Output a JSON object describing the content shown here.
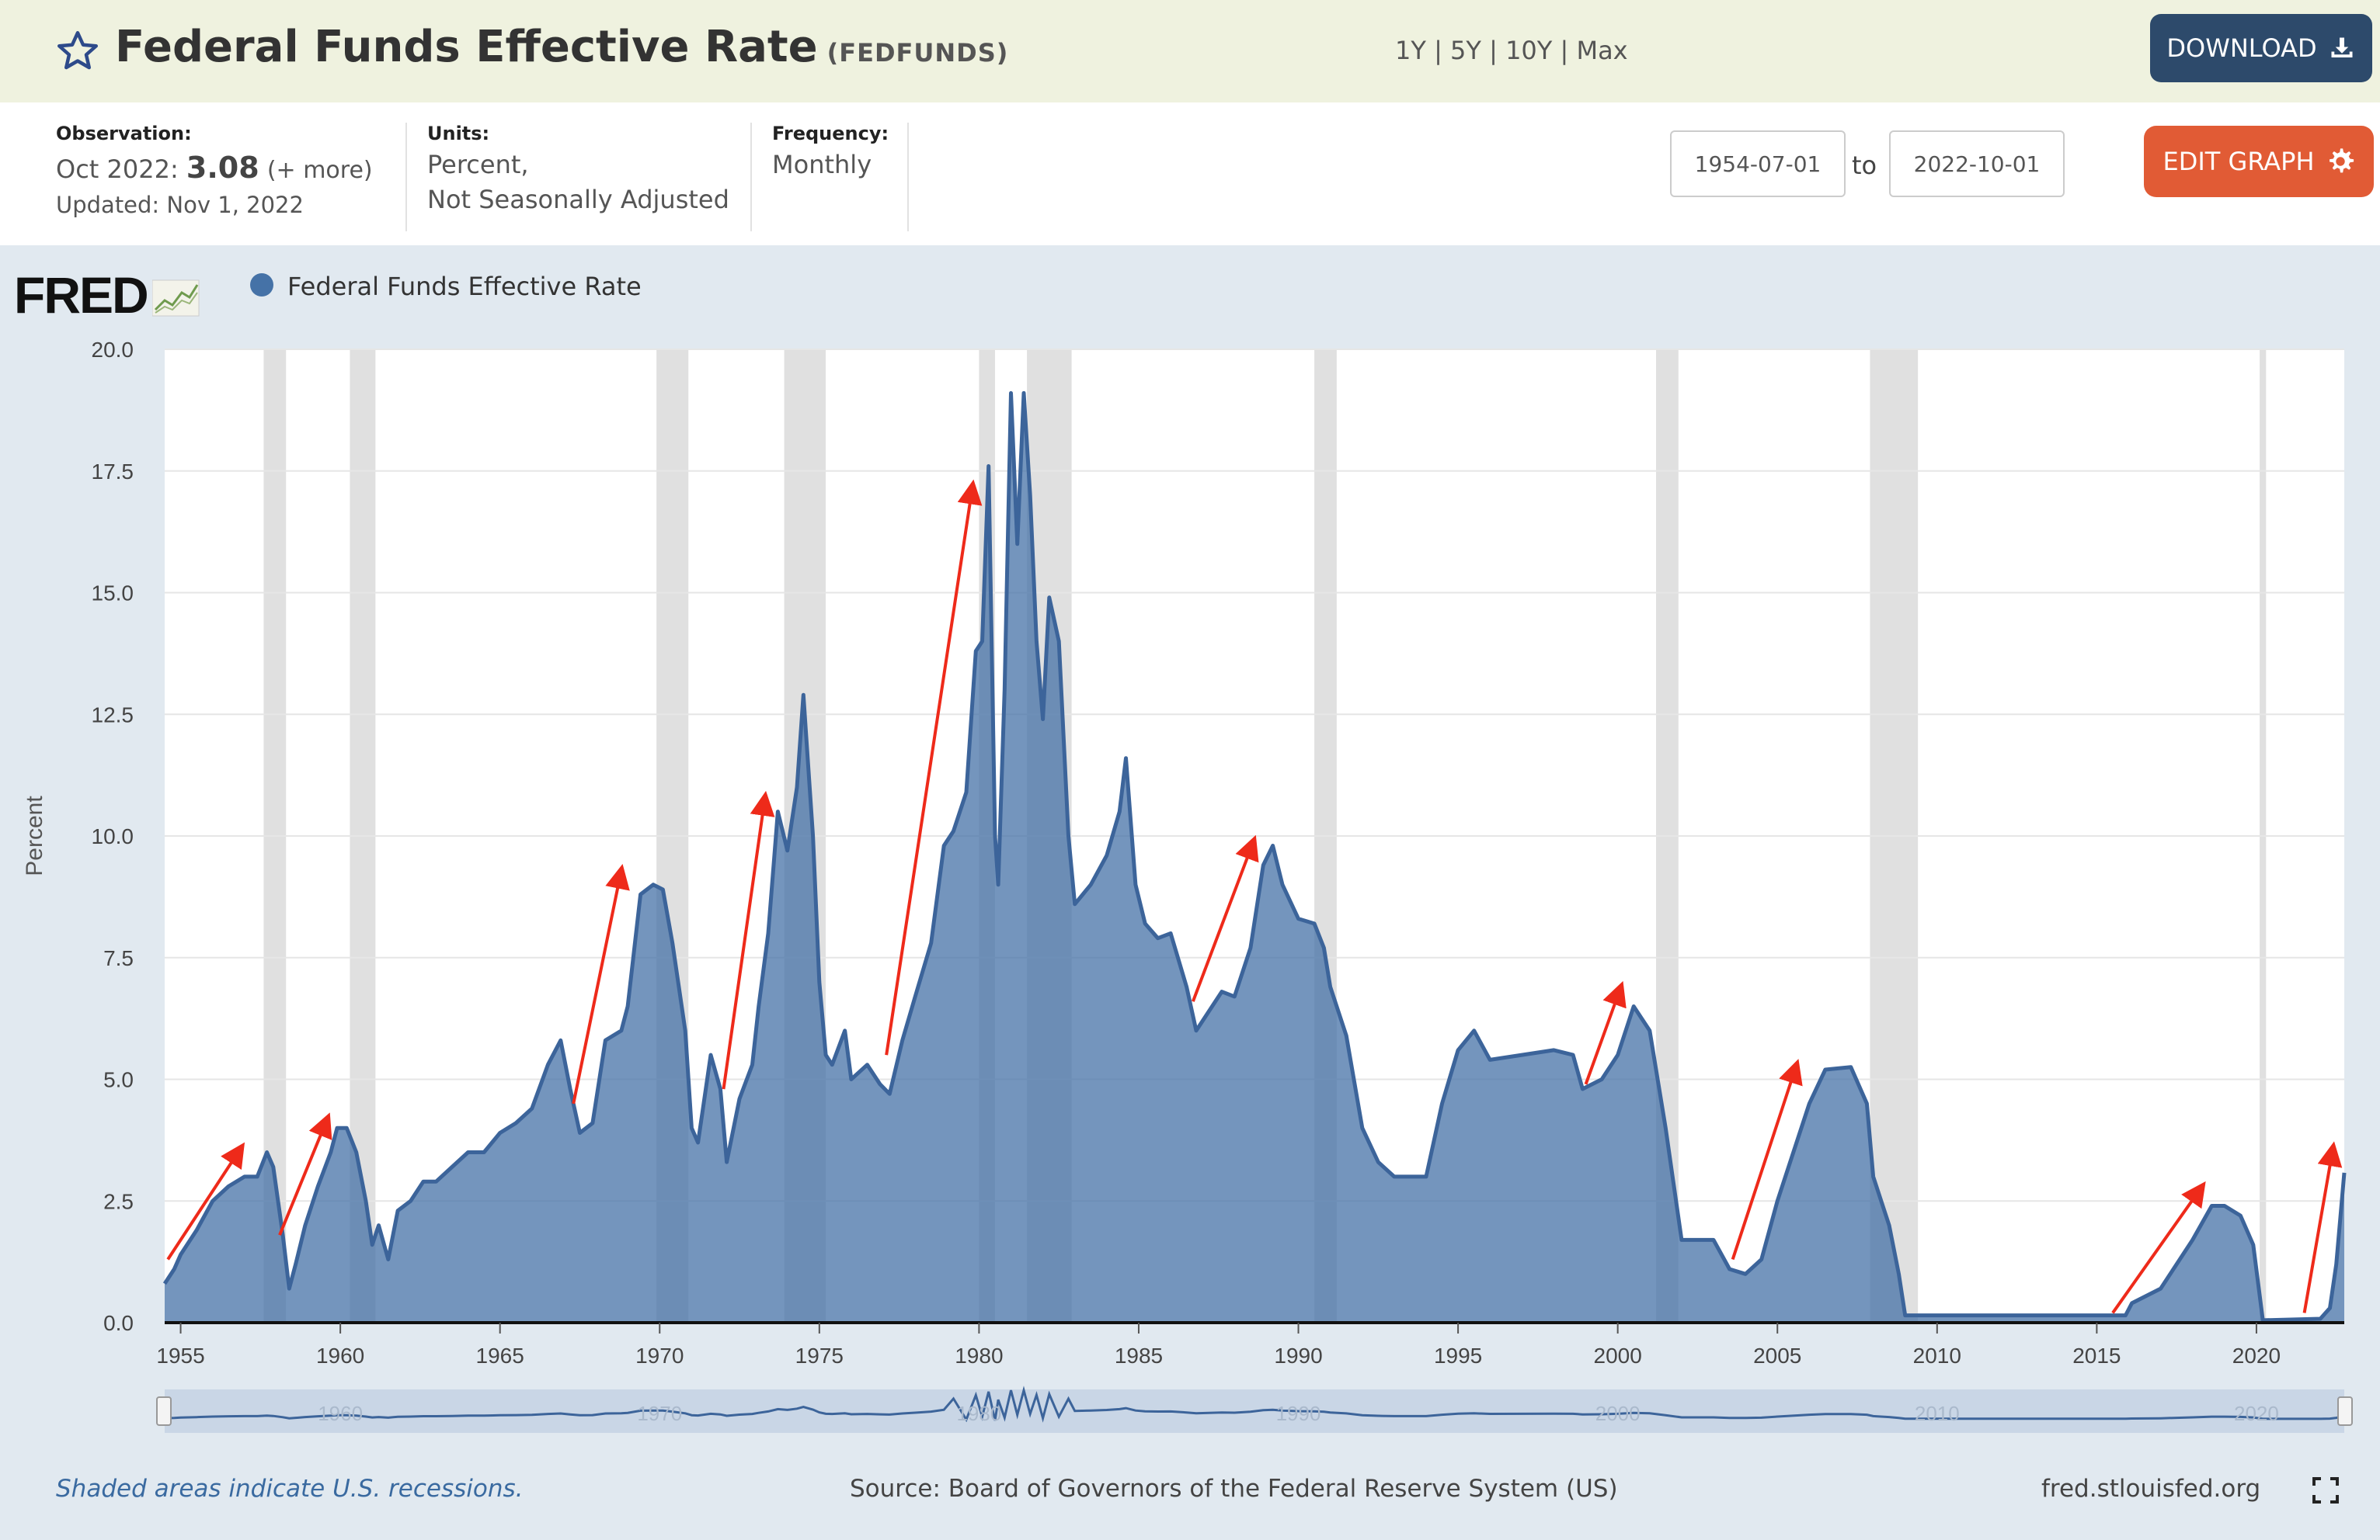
{
  "header": {
    "title": "Federal Funds Effective Rate",
    "series_id": "(FEDFUNDS)",
    "download_label": "DOWNLOAD",
    "star_icon": "star-outline-icon",
    "download_icon": "download-icon"
  },
  "info": {
    "observation_label": "Observation:",
    "observation_date": "Oct 2022:",
    "observation_value": "3.08",
    "observation_more": "(+ more)",
    "updated": "Updated: Nov 1, 2022",
    "units_label": "Units:",
    "units_line1": "Percent,",
    "units_line2": "Not Seasonally Adjusted",
    "frequency_label": "Frequency:",
    "frequency_value": "Monthly"
  },
  "controls": {
    "range_1y": "1Y",
    "range_5y": "5Y",
    "range_10y": "10Y",
    "range_max": "Max",
    "separator": "|",
    "start_date": "1954-07-01",
    "to_label": "to",
    "end_date": "2022-10-01",
    "edit_graph_label": "EDIT GRAPH",
    "edit_icon": "gear-icon"
  },
  "legend": {
    "logo": "FRED",
    "series_label": "Federal Funds Effective Rate",
    "series_color": "#4572a7"
  },
  "chart_data": {
    "type": "area",
    "ylabel": "Percent",
    "ylim": [
      0,
      20
    ],
    "xlim": [
      1954.5,
      2022.75
    ],
    "yticks": [
      "0.0",
      "2.5",
      "5.0",
      "7.5",
      "10.0",
      "12.5",
      "15.0",
      "17.5",
      "20.0"
    ],
    "xticks": [
      "1955",
      "1960",
      "1965",
      "1970",
      "1975",
      "1980",
      "1985",
      "1990",
      "1995",
      "2000",
      "2005",
      "2010",
      "2015",
      "2020"
    ],
    "navigator_labels": [
      "1960",
      "1970",
      "1980",
      "1990",
      "2000",
      "2010",
      "2020"
    ],
    "series": [
      {
        "name": "Federal Funds Effective Rate",
        "color": "#4572a7",
        "points": [
          [
            1954.5,
            0.8
          ],
          [
            1954.8,
            1.1
          ],
          [
            1955.0,
            1.4
          ],
          [
            1955.5,
            1.9
          ],
          [
            1956.0,
            2.5
          ],
          [
            1956.5,
            2.8
          ],
          [
            1957.0,
            3.0
          ],
          [
            1957.4,
            3.0
          ],
          [
            1957.7,
            3.5
          ],
          [
            1957.9,
            3.2
          ],
          [
            1958.2,
            1.8
          ],
          [
            1958.4,
            0.7
          ],
          [
            1958.6,
            1.2
          ],
          [
            1958.9,
            2.0
          ],
          [
            1959.3,
            2.8
          ],
          [
            1959.7,
            3.5
          ],
          [
            1959.9,
            4.0
          ],
          [
            1960.2,
            4.0
          ],
          [
            1960.5,
            3.5
          ],
          [
            1960.8,
            2.5
          ],
          [
            1961.0,
            1.6
          ],
          [
            1961.2,
            2.0
          ],
          [
            1961.5,
            1.3
          ],
          [
            1961.8,
            2.3
          ],
          [
            1962.2,
            2.5
          ],
          [
            1962.6,
            2.9
          ],
          [
            1963.0,
            2.9
          ],
          [
            1963.5,
            3.2
          ],
          [
            1964.0,
            3.5
          ],
          [
            1964.5,
            3.5
          ],
          [
            1965.0,
            3.9
          ],
          [
            1965.5,
            4.1
          ],
          [
            1966.0,
            4.4
          ],
          [
            1966.5,
            5.3
          ],
          [
            1966.9,
            5.8
          ],
          [
            1967.2,
            4.8
          ],
          [
            1967.5,
            3.9
          ],
          [
            1967.9,
            4.1
          ],
          [
            1968.3,
            5.8
          ],
          [
            1968.8,
            6.0
          ],
          [
            1969.0,
            6.5
          ],
          [
            1969.4,
            8.8
          ],
          [
            1969.8,
            9.0
          ],
          [
            1970.1,
            8.9
          ],
          [
            1970.4,
            7.8
          ],
          [
            1970.8,
            6.0
          ],
          [
            1971.0,
            4.0
          ],
          [
            1971.2,
            3.7
          ],
          [
            1971.6,
            5.5
          ],
          [
            1971.9,
            4.8
          ],
          [
            1972.1,
            3.3
          ],
          [
            1972.5,
            4.6
          ],
          [
            1972.9,
            5.3
          ],
          [
            1973.1,
            6.5
          ],
          [
            1973.4,
            8.0
          ],
          [
            1973.7,
            10.5
          ],
          [
            1974.0,
            9.7
          ],
          [
            1974.3,
            11.0
          ],
          [
            1974.5,
            12.9
          ],
          [
            1974.8,
            10.0
          ],
          [
            1975.0,
            7.0
          ],
          [
            1975.2,
            5.5
          ],
          [
            1975.4,
            5.3
          ],
          [
            1975.8,
            6.0
          ],
          [
            1976.0,
            5.0
          ],
          [
            1976.5,
            5.3
          ],
          [
            1976.9,
            4.9
          ],
          [
            1977.2,
            4.7
          ],
          [
            1977.6,
            5.8
          ],
          [
            1978.0,
            6.7
          ],
          [
            1978.5,
            7.8
          ],
          [
            1978.9,
            9.8
          ],
          [
            1979.2,
            10.1
          ],
          [
            1979.6,
            10.9
          ],
          [
            1979.9,
            13.8
          ],
          [
            1980.1,
            14.0
          ],
          [
            1980.3,
            17.6
          ],
          [
            1980.5,
            10.0
          ],
          [
            1980.6,
            9.0
          ],
          [
            1980.8,
            13.0
          ],
          [
            1981.0,
            19.1
          ],
          [
            1981.2,
            16.0
          ],
          [
            1981.4,
            19.1
          ],
          [
            1981.6,
            17.0
          ],
          [
            1981.8,
            14.0
          ],
          [
            1982.0,
            12.4
          ],
          [
            1982.2,
            14.9
          ],
          [
            1982.5,
            14.0
          ],
          [
            1982.8,
            10.0
          ],
          [
            1983.0,
            8.6
          ],
          [
            1983.5,
            9.0
          ],
          [
            1984.0,
            9.6
          ],
          [
            1984.4,
            10.5
          ],
          [
            1984.6,
            11.6
          ],
          [
            1984.9,
            9.0
          ],
          [
            1985.2,
            8.2
          ],
          [
            1985.6,
            7.9
          ],
          [
            1986.0,
            8.0
          ],
          [
            1986.5,
            6.9
          ],
          [
            1986.8,
            6.0
          ],
          [
            1987.2,
            6.4
          ],
          [
            1987.6,
            6.8
          ],
          [
            1988.0,
            6.7
          ],
          [
            1988.5,
            7.7
          ],
          [
            1988.9,
            9.4
          ],
          [
            1989.2,
            9.8
          ],
          [
            1989.5,
            9.0
          ],
          [
            1990.0,
            8.3
          ],
          [
            1990.5,
            8.2
          ],
          [
            1990.8,
            7.7
          ],
          [
            1991.0,
            6.9
          ],
          [
            1991.5,
            5.9
          ],
          [
            1992.0,
            4.0
          ],
          [
            1992.5,
            3.3
          ],
          [
            1993.0,
            3.0
          ],
          [
            1994.0,
            3.0
          ],
          [
            1994.5,
            4.5
          ],
          [
            1995.0,
            5.6
          ],
          [
            1995.5,
            6.0
          ],
          [
            1996.0,
            5.4
          ],
          [
            1997.0,
            5.5
          ],
          [
            1998.0,
            5.6
          ],
          [
            1998.6,
            5.5
          ],
          [
            1998.9,
            4.8
          ],
          [
            1999.5,
            5.0
          ],
          [
            2000.0,
            5.5
          ],
          [
            2000.5,
            6.5
          ],
          [
            2001.0,
            6.0
          ],
          [
            2001.5,
            4.0
          ],
          [
            2002.0,
            1.7
          ],
          [
            2003.0,
            1.7
          ],
          [
            2003.5,
            1.1
          ],
          [
            2004.0,
            1.0
          ],
          [
            2004.5,
            1.3
          ],
          [
            2005.0,
            2.5
          ],
          [
            2006.0,
            4.5
          ],
          [
            2006.5,
            5.2
          ],
          [
            2007.3,
            5.25
          ],
          [
            2007.8,
            4.5
          ],
          [
            2008.0,
            3.0
          ],
          [
            2008.5,
            2.0
          ],
          [
            2008.8,
            1.0
          ],
          [
            2009.0,
            0.15
          ],
          [
            2012.0,
            0.15
          ],
          [
            2015.9,
            0.15
          ],
          [
            2016.1,
            0.4
          ],
          [
            2017.0,
            0.7
          ],
          [
            2018.0,
            1.7
          ],
          [
            2018.6,
            2.4
          ],
          [
            2019.0,
            2.4
          ],
          [
            2019.5,
            2.2
          ],
          [
            2019.9,
            1.6
          ],
          [
            2020.2,
            0.05
          ],
          [
            2022.0,
            0.08
          ],
          [
            2022.3,
            0.3
          ],
          [
            2022.5,
            1.2
          ],
          [
            2022.75,
            3.08
          ]
        ]
      }
    ],
    "recessions": [
      [
        1957.6,
        1958.3
      ],
      [
        1960.3,
        1961.1
      ],
      [
        1969.9,
        1970.9
      ],
      [
        1973.9,
        1975.2
      ],
      [
        1980.0,
        1980.5
      ],
      [
        1981.5,
        1982.9
      ],
      [
        1990.5,
        1991.2
      ],
      [
        2001.2,
        2001.9
      ],
      [
        2007.9,
        2009.4
      ],
      [
        2020.1,
        2020.3
      ]
    ],
    "annotation_arrows": [
      [
        [
          1954.6,
          1.3
        ],
        [
          1956.9,
          3.6
        ]
      ],
      [
        [
          1958.1,
          1.8
        ],
        [
          1959.6,
          4.2
        ]
      ],
      [
        [
          1967.3,
          4.5
        ],
        [
          1968.8,
          9.3
        ]
      ],
      [
        [
          1972.0,
          4.8
        ],
        [
          1973.3,
          10.8
        ]
      ],
      [
        [
          1977.1,
          5.5
        ],
        [
          1979.8,
          17.2
        ]
      ],
      [
        [
          1986.7,
          6.6
        ],
        [
          1988.6,
          9.9
        ]
      ],
      [
        [
          1999.0,
          4.9
        ],
        [
          2000.1,
          6.9
        ]
      ],
      [
        [
          2003.6,
          1.3
        ],
        [
          2005.6,
          5.3
        ]
      ],
      [
        [
          2015.5,
          0.2
        ],
        [
          2018.3,
          2.8
        ]
      ],
      [
        [
          2021.5,
          0.2
        ],
        [
          2022.4,
          3.6
        ]
      ]
    ]
  },
  "footer": {
    "recession_note": "Shaded areas indicate U.S. recessions.",
    "source": "Source: Board of Governors of the Federal Reserve System (US)",
    "site": "fred.stlouisfed.org",
    "fullscreen_icon": "fullscreen-icon"
  }
}
